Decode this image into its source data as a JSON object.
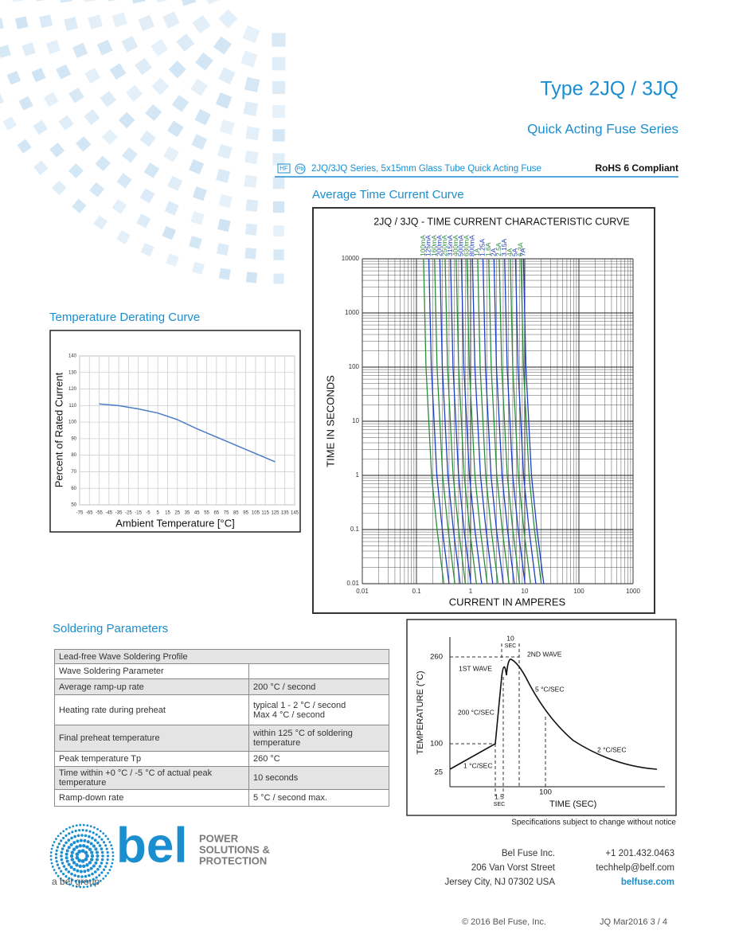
{
  "header": {
    "title": "Type 2JQ / 3JQ",
    "subtitle": "Quick Acting Fuse Series",
    "badges": [
      "HF",
      "Pb"
    ],
    "series_line": "2JQ/3JQ Series, 5x15mm Glass Tube Quick Acting Fuse",
    "compliance": "RoHS 6 Compliant"
  },
  "sections": {
    "tcc": "Average Time Current Curve",
    "derating": "Temperature Derating Curve",
    "soldering": "Soldering Parameters"
  },
  "chart_data": [
    {
      "type": "line",
      "x_label": "Ambient Temperature [°C]",
      "y_label": "Percent of Rated Current",
      "color": "#4a7cc9",
      "grid": true,
      "x": [
        -55,
        -35,
        -15,
        5,
        25,
        45,
        65,
        85,
        105,
        125
      ],
      "values": [
        111,
        110,
        108,
        105.5,
        101.5,
        96,
        91,
        86,
        81,
        76
      ],
      "xlim": [
        -75,
        145
      ],
      "xticks": [
        -75,
        -65,
        -55,
        -45,
        -35,
        -25,
        -15,
        -5,
        5,
        15,
        25,
        35,
        45,
        55,
        65,
        75,
        85,
        95,
        105,
        115,
        125,
        135,
        145
      ],
      "ylim": [
        50,
        140
      ],
      "yticks": [
        50,
        60,
        70,
        80,
        90,
        100,
        110,
        120,
        130,
        140
      ]
    },
    {
      "type": "line",
      "title": "2JQ / 3JQ - TIME CURRENT CHARACTERISTIC CURVE",
      "x_label": "CURRENT IN AMPERES",
      "y_label": "TIME IN SECONDS",
      "log_x": true,
      "log_y": true,
      "grid": true,
      "xlim": [
        0.01,
        1000
      ],
      "xticks": [
        0.01,
        0.1,
        1,
        10,
        100,
        1000
      ],
      "ylim": [
        0.01,
        10000
      ],
      "yticks": [
        0.01,
        0.1,
        1,
        10,
        100,
        1000,
        10000
      ],
      "series": [
        {
          "name": "100mA",
          "color": "#2e8b3e",
          "x": [
            0.135,
            0.15,
            0.19,
            0.24,
            0.32
          ],
          "values": [
            10000,
            100,
            1,
            0.1,
            0.01
          ]
        },
        {
          "name": "125mA",
          "color": "#1f3fbf",
          "x": [
            0.169,
            0.188,
            0.238,
            0.3,
            0.4
          ],
          "values": [
            10000,
            100,
            1,
            0.1,
            0.01
          ]
        },
        {
          "name": "160mA",
          "color": "#2e8b3e",
          "x": [
            0.216,
            0.24,
            0.304,
            0.384,
            0.512
          ],
          "values": [
            10000,
            100,
            1,
            0.1,
            0.01
          ]
        },
        {
          "name": "200mA",
          "color": "#1f3fbf",
          "x": [
            0.27,
            0.3,
            0.38,
            0.48,
            0.64
          ],
          "values": [
            10000,
            100,
            1,
            0.1,
            0.01
          ]
        },
        {
          "name": "250mA",
          "color": "#2e8b3e",
          "x": [
            0.338,
            0.375,
            0.475,
            0.6,
            0.8
          ],
          "values": [
            10000,
            100,
            1,
            0.1,
            0.01
          ]
        },
        {
          "name": "315mA",
          "color": "#1f3fbf",
          "x": [
            0.425,
            0.473,
            0.599,
            0.756,
            1.01
          ],
          "values": [
            10000,
            100,
            1,
            0.1,
            0.01
          ]
        },
        {
          "name": "400mA",
          "color": "#2e8b3e",
          "x": [
            0.54,
            0.6,
            0.76,
            0.96,
            1.28
          ],
          "values": [
            10000,
            100,
            1,
            0.1,
            0.01
          ]
        },
        {
          "name": "500mA",
          "color": "#1f3fbf",
          "x": [
            0.675,
            0.75,
            0.95,
            1.2,
            1.6
          ],
          "values": [
            10000,
            100,
            1,
            0.1,
            0.01
          ]
        },
        {
          "name": "630mA",
          "color": "#2e8b3e",
          "x": [
            0.851,
            0.945,
            1.2,
            1.51,
            2.02
          ],
          "values": [
            10000,
            100,
            1,
            0.1,
            0.01
          ]
        },
        {
          "name": "800mA",
          "color": "#1f3fbf",
          "x": [
            1.08,
            1.2,
            1.52,
            1.92,
            2.56
          ],
          "values": [
            10000,
            100,
            1,
            0.1,
            0.01
          ]
        },
        {
          "name": "1A",
          "color": "#2e8b3e",
          "x": [
            1.35,
            1.5,
            1.9,
            2.4,
            3.2
          ],
          "values": [
            10000,
            100,
            1,
            0.1,
            0.01
          ]
        },
        {
          "name": "1.25A",
          "color": "#1f3fbf",
          "x": [
            1.69,
            1.88,
            2.38,
            3,
            4
          ],
          "values": [
            10000,
            100,
            1,
            0.1,
            0.01
          ]
        },
        {
          "name": "1.6A",
          "color": "#2e8b3e",
          "x": [
            2.16,
            2.4,
            3.04,
            3.84,
            5.12
          ],
          "values": [
            10000,
            100,
            1,
            0.1,
            0.01
          ]
        },
        {
          "name": "2A",
          "color": "#1f3fbf",
          "x": [
            2.7,
            3,
            3.8,
            4.8,
            6.4
          ],
          "values": [
            10000,
            100,
            1,
            0.1,
            0.01
          ]
        },
        {
          "name": "2.5A",
          "color": "#2e8b3e",
          "x": [
            3.38,
            3.75,
            4.75,
            6,
            8
          ],
          "values": [
            10000,
            100,
            1,
            0.1,
            0.01
          ]
        },
        {
          "name": "3.15A",
          "color": "#1f3fbf",
          "x": [
            4.25,
            4.73,
            5.99,
            7.56,
            10.1
          ],
          "values": [
            10000,
            100,
            1,
            0.1,
            0.01
          ]
        },
        {
          "name": "4A",
          "color": "#2e8b3e",
          "x": [
            5.4,
            6,
            7.6,
            9.6,
            12.8
          ],
          "values": [
            10000,
            100,
            1,
            0.1,
            0.01
          ]
        },
        {
          "name": "5A",
          "color": "#1f3fbf",
          "x": [
            6.75,
            7.5,
            9.5,
            12,
            16
          ],
          "values": [
            10000,
            100,
            1,
            0.1,
            0.01
          ]
        },
        {
          "name": "6.3A",
          "color": "#2e8b3e",
          "x": [
            8.51,
            9.45,
            12,
            15.1,
            20.2
          ],
          "values": [
            10000,
            100,
            1,
            0.1,
            0.01
          ]
        },
        {
          "name": "7A",
          "color": "#1f3fbf",
          "x": [
            9.45,
            10.5,
            13.3,
            16.8,
            22.4
          ],
          "values": [
            10000,
            100,
            1,
            0.1,
            0.01
          ]
        }
      ]
    }
  ],
  "table": {
    "title": "Lead-free Wave Soldering Profile",
    "header": "Wave Soldering Parameter",
    "rows": [
      [
        "Average ramp-up rate",
        "200 °C / second"
      ],
      [
        "Heating rate during preheat",
        "typical 1 - 2 °C / second\nMax 4 °C / second"
      ],
      [
        "Final preheat temperature",
        "within 125 °C of soldering\ntemperature"
      ],
      [
        "Peak temperature Tp",
        "260 °C"
      ],
      [
        "Time within +0 °C / -5 °C of actual peak\ntemperature",
        "10 seconds"
      ],
      [
        "Ramp-down rate",
        "5 °C / second max."
      ]
    ]
  },
  "profile": {
    "y_label": "TEMPERATURE (°C)",
    "x_label": "TIME (SEC)",
    "t260": "260",
    "t100": "100",
    "t25": "25",
    "time100": "100",
    "peak_time": [
      "10",
      "SEC"
    ],
    "ramp_time": [
      "1.5",
      "SEC"
    ],
    "wave2": "2ND WAVE",
    "wave1": "1ST WAVE",
    "rate5": "5 °C/SEC",
    "rate200": "200 °C/SEC",
    "rate2": "2 °C/SEC",
    "rate1": "1 °C/SEC"
  },
  "note": "Specifications subject to change without notice",
  "footer": {
    "logo": "bel",
    "tagline": [
      "POWER",
      "SOLUTIONS &",
      "PROTECTION"
    ],
    "group": "a bel group",
    "address": [
      "Bel Fuse Inc.",
      "206 Van Vorst Street",
      "Jersey City, NJ 07302 USA"
    ],
    "contact": [
      "+1 201.432.0463",
      "techhelp@belf.com",
      "belfuse.com"
    ],
    "copyright": "© 2016 Bel Fuse, Inc.",
    "doc_ref": "JQ Mar2016 3 / 4"
  }
}
